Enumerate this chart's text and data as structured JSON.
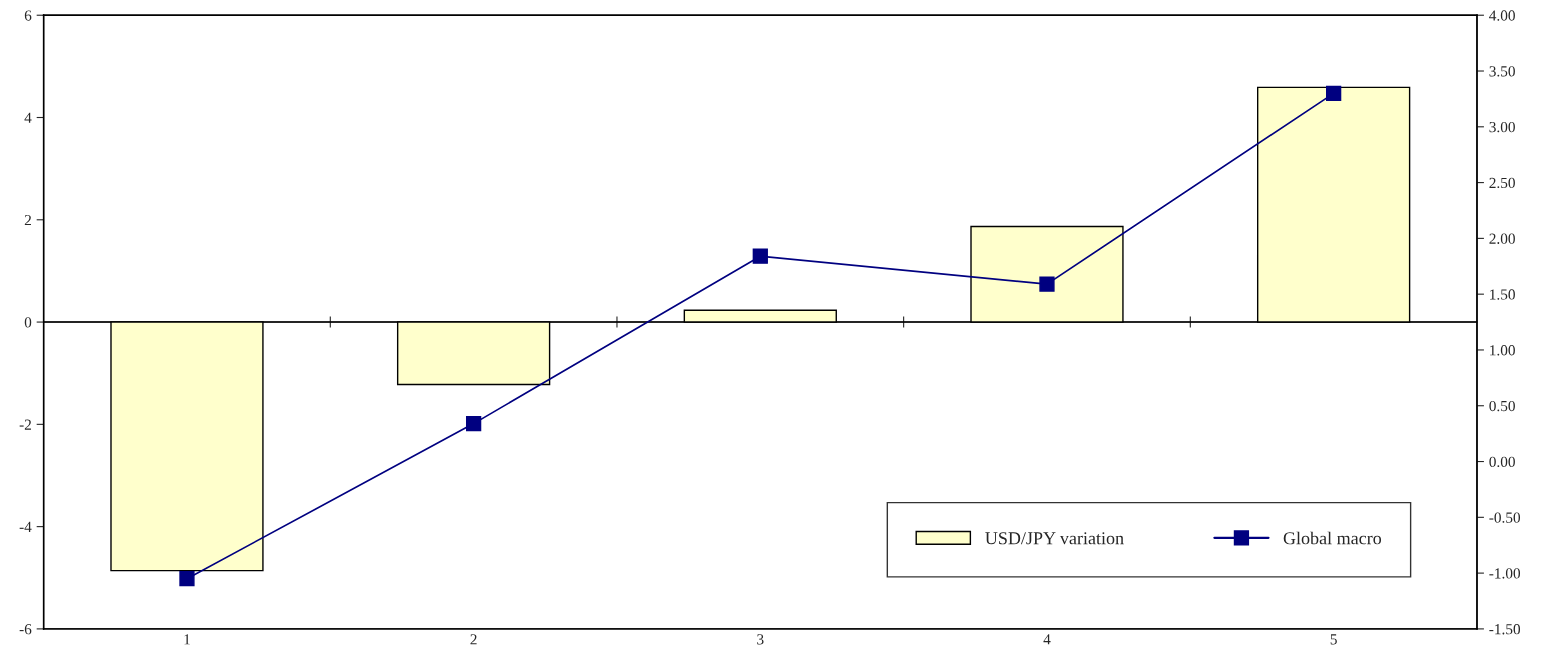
{
  "chart_data": {
    "type": "bar",
    "categories": [
      "1",
      "2",
      "3",
      "4",
      "5"
    ],
    "series": [
      {
        "name": "USD/JPY variation",
        "color": "#ffffcc",
        "values": [
          -4.86,
          -1.22,
          0.23,
          1.87,
          4.59
        ]
      },
      {
        "name": "Global macro",
        "type": "line",
        "axis": "y2",
        "color": "#000080",
        "marker": "square",
        "values": [
          -1.05,
          0.34,
          1.84,
          1.59,
          3.3
        ]
      }
    ],
    "ylim": [
      -6,
      6
    ],
    "yticks": [
      -6,
      -4,
      -2,
      0,
      2,
      4,
      6
    ],
    "y2lim": [
      -1.5,
      4
    ],
    "y2ticks": [
      {
        "value": -1.5,
        "label": "-1.50"
      },
      {
        "value": -1,
        "label": "-1.00"
      },
      {
        "value": -0.5,
        "label": "-0.50"
      },
      {
        "value": 0,
        "label": "0.00"
      },
      {
        "value": 0.5,
        "label": "0.50"
      },
      {
        "value": 1,
        "label": "1.00"
      },
      {
        "value": 1.5,
        "label": "1.50"
      },
      {
        "value": 2,
        "label": "2.00"
      },
      {
        "value": 2.5,
        "label": "2.50"
      },
      {
        "value": 3,
        "label": "3.00"
      },
      {
        "value": 3.5,
        "label": "3.50"
      },
      {
        "value": 4,
        "label": "4.00"
      }
    ],
    "ref_lines": [
      {
        "axis": "y",
        "value": 0,
        "color": "#000000"
      }
    ],
    "legend": "bottom right",
    "grid": false
  }
}
